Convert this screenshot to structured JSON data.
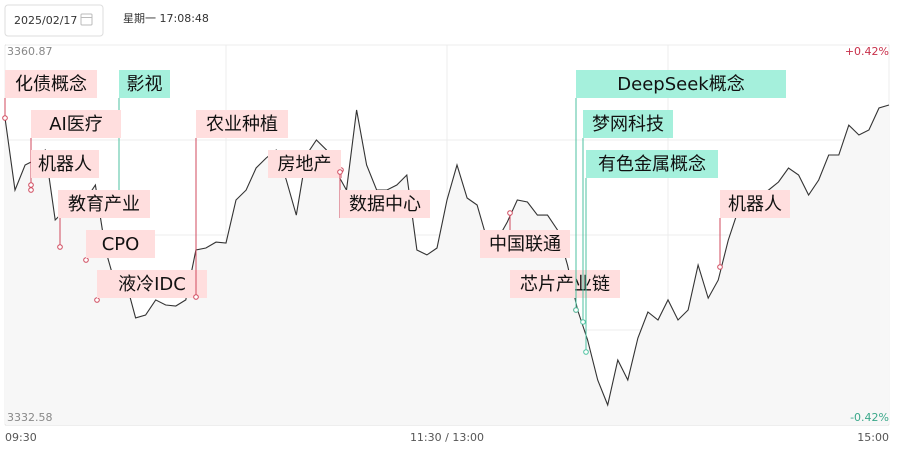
{
  "header": {
    "date": "2025/02/17",
    "time": "星期一 17:08:48"
  },
  "chart_data": {
    "type": "line",
    "categories": [
      "09:30",
      null,
      null,
      null,
      null,
      null,
      null,
      null,
      null,
      null,
      null,
      null,
      null,
      null,
      null,
      null,
      null,
      null,
      null,
      null,
      null,
      null,
      null,
      null,
      null,
      null,
      null,
      null,
      null,
      null,
      null,
      null,
      null,
      null,
      null,
      null,
      null,
      null,
      null,
      null,
      null,
      null,
      null,
      null,
      "11:30 / 13:00",
      null,
      null,
      null,
      null,
      null,
      null,
      null,
      null,
      null,
      null,
      null,
      null,
      null,
      null,
      null,
      null,
      null,
      null,
      null,
      null,
      null,
      null,
      null,
      null,
      null,
      null,
      null,
      null,
      null,
      null,
      null,
      null,
      null,
      null,
      null,
      null,
      null,
      null,
      null,
      null,
      null,
      null,
      null,
      "15:00"
    ],
    "values": [
      3355.44,
      3350.07,
      3351.94,
      3352.31,
      3353.05,
      3347.84,
      3348.59,
      3349.7,
      3349.33,
      3350.45,
      3345.61,
      3343.0,
      3343.37,
      3340.55,
      3340.77,
      3341.89,
      3341.51,
      3341.44,
      3341.89,
      3345.61,
      3345.76,
      3346.2,
      3346.13,
      3349.33,
      3350.07,
      3351.71,
      3352.46,
      3353.05,
      3350.82,
      3348.21,
      3352.68,
      3353.8,
      3353.05,
      3351.41,
      3350.07,
      3356.03,
      3351.94,
      3350.07,
      3350.07,
      3350.45,
      3351.19,
      3345.61,
      3345.24,
      3345.76,
      3349.33,
      3351.94,
      3349.48,
      3348.96,
      3346.35,
      3346.35,
      3347.69,
      3349.33,
      3349.18,
      3348.21,
      3348.21,
      3347.1,
      3344.49,
      3341.14,
      3338.91,
      3335.93,
      3334.07,
      3337.42,
      3335.93,
      3339.06,
      3340.99,
      3340.4,
      3341.89,
      3340.4,
      3341.14,
      3344.49,
      3342.03,
      3343.37,
      3346.35,
      3348.59,
      3348.96,
      3349.7,
      3350.07,
      3350.67,
      3351.71,
      3351.19,
      3349.7,
      3350.82,
      3352.68,
      3352.68,
      3354.91,
      3354.17,
      3354.54,
      3356.18,
      3356.4
    ],
    "color": "#333333",
    "ylim": [
      3332.58,
      3360.87
    ],
    "yticks": [
      3332.58,
      3360.87
    ],
    "y2lim": [
      -0.42,
      0.42
    ],
    "y2ticks": [
      {
        "value": -0.42,
        "label": "-0.42%"
      },
      {
        "value": 0.42,
        "label": "+0.42%"
      }
    ],
    "up_color": "#c8304a",
    "down_color": "#3aa88a",
    "grid": true,
    "annotations": [
      {
        "text": "化债概念",
        "color": "#ffdede"
      },
      {
        "text": "影视",
        "color": "#a5f0dc"
      },
      {
        "text": "AI医疗",
        "color": "#ffdede"
      },
      {
        "text": "机器人",
        "color": "#ffdede"
      },
      {
        "text": "教育产业",
        "color": "#ffdede"
      },
      {
        "text": "CPO",
        "color": "#ffdede"
      },
      {
        "text": "液冷IDC",
        "color": "#ffdede"
      },
      {
        "text": "农业种植",
        "color": "#ffdede"
      },
      {
        "text": "房地产",
        "color": "#ffdede"
      },
      {
        "text": "数据中心",
        "color": "#ffdede"
      },
      {
        "text": "中国联通",
        "color": "#ffdede"
      },
      {
        "text": "芯片产业链",
        "color": "#ffdede"
      },
      {
        "text": "DeepSeek概念",
        "color": "#a5f0dc"
      },
      {
        "text": "梦网科技",
        "color": "#a5f0dc"
      },
      {
        "text": "有色金属概念",
        "color": "#a5f0dc"
      },
      {
        "text": "机器人",
        "color": "#ffdede"
      }
    ]
  }
}
